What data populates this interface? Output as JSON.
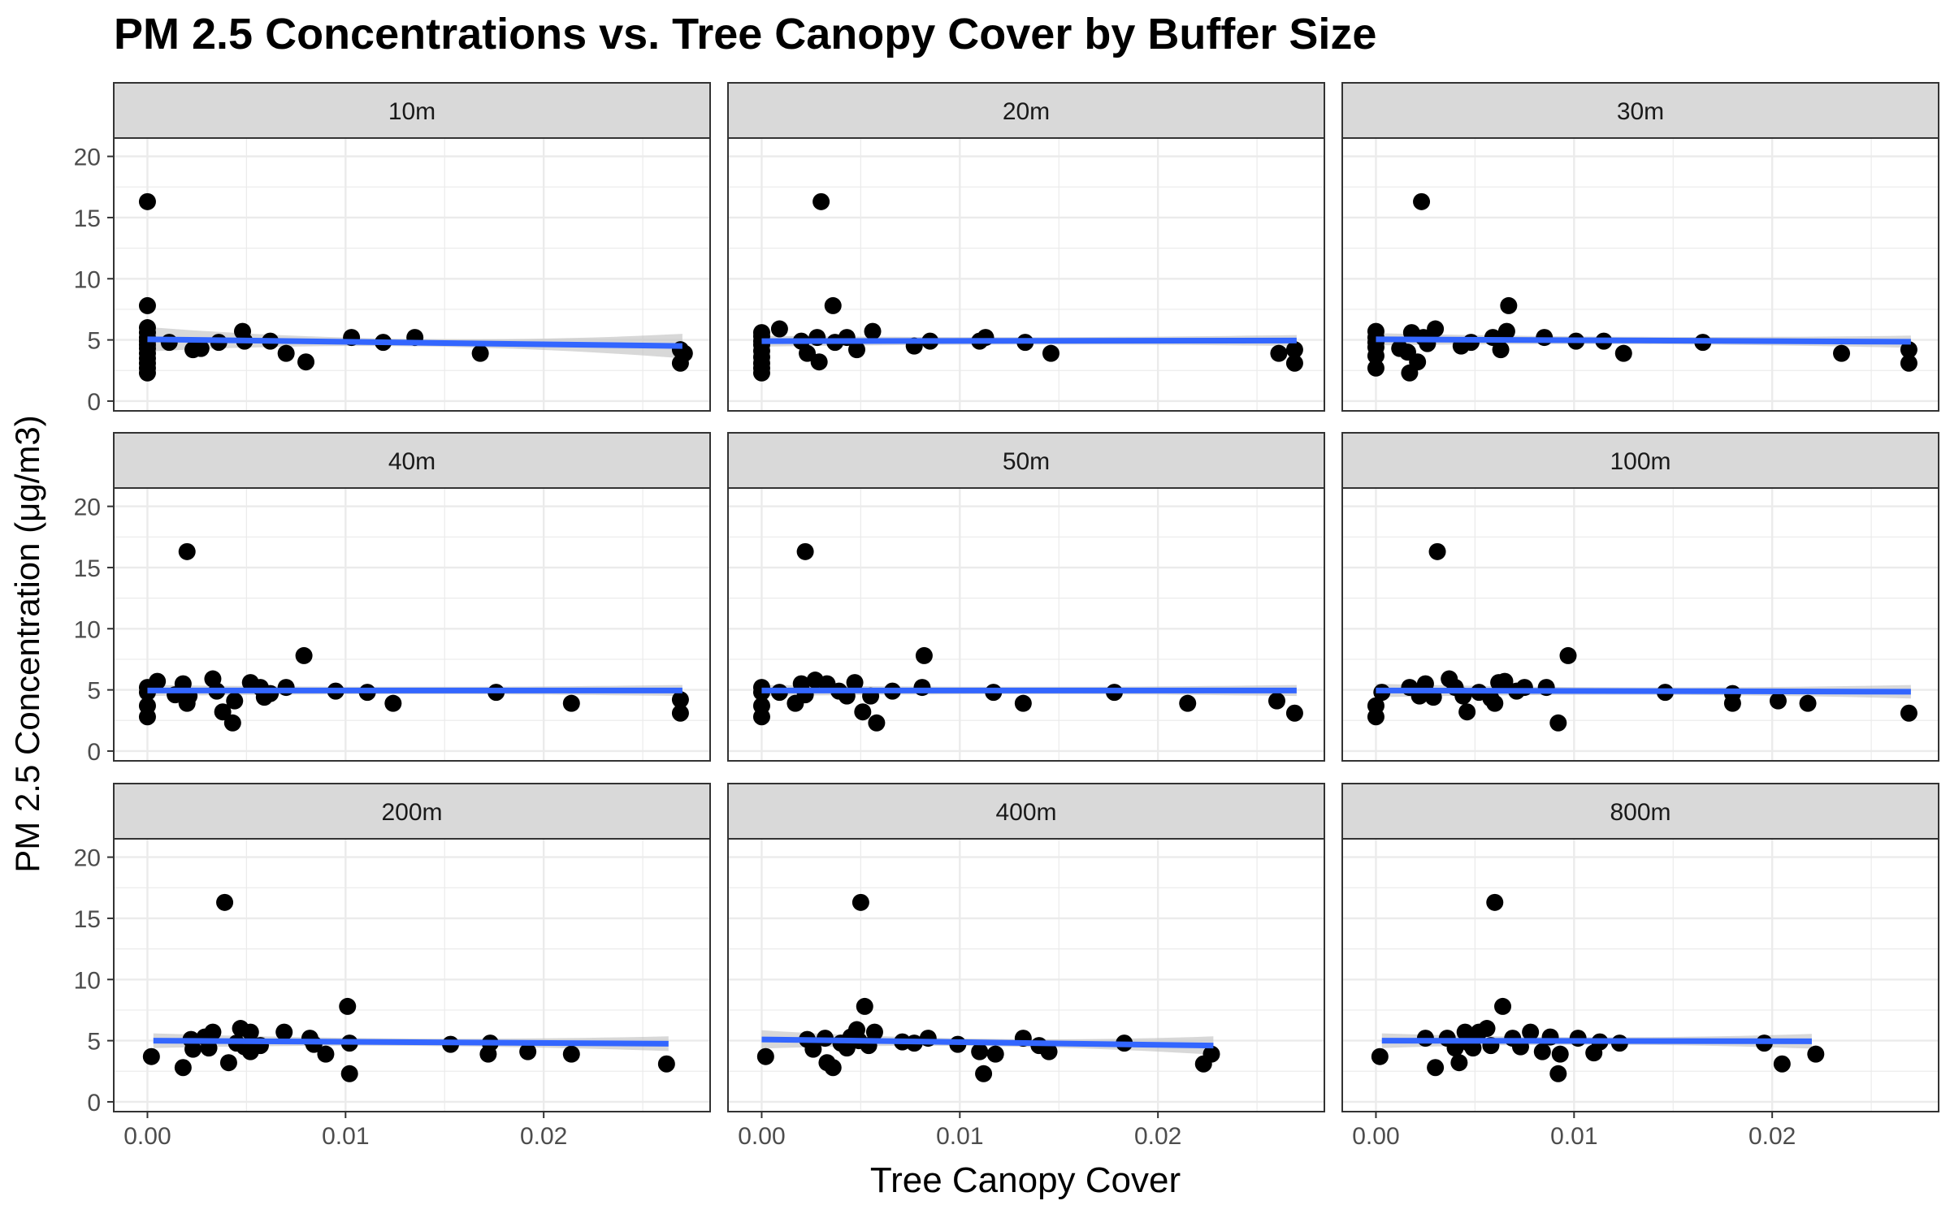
{
  "chart_data": {
    "type": "scatter",
    "title": "PM 2.5 Concentrations vs. Tree Canopy Cover by Buffer Size",
    "xlabel": "Tree Canopy Cover",
    "ylabel": "PM 2.5 Concentration (μg/m3)",
    "xlim": [
      -0.0017,
      0.0284
    ],
    "ylim": [
      -0.8,
      21.5
    ],
    "x_ticks": [
      0.0,
      0.01,
      0.02
    ],
    "x_tick_labels": [
      "0.00",
      "0.01",
      "0.02"
    ],
    "y_ticks": [
      0,
      5,
      10,
      15,
      20
    ],
    "y_tick_labels": [
      "0",
      "5",
      "10",
      "15",
      "20"
    ],
    "grid": true,
    "legend": "none",
    "colors": {
      "points": "#000000",
      "fit_line": "#3366FF",
      "confidence_band": "#BEBEBE",
      "strip_fill": "#D9D9D9",
      "grid": "#EBEBEB"
    },
    "panels": [
      {
        "label": "10m",
        "fit": {
          "x": [
            0.0,
            0.027
          ],
          "y": [
            5.05,
            4.5
          ],
          "band": [
            0.3,
            1.0
          ]
        },
        "points": [
          [
            0.0,
            16.3
          ],
          [
            0.0,
            7.8
          ],
          [
            0.0,
            6.0
          ],
          [
            0.0,
            5.6
          ],
          [
            0.0,
            5.2
          ],
          [
            0.0,
            4.9
          ],
          [
            0.0,
            4.6
          ],
          [
            0.0,
            4.3
          ],
          [
            0.0,
            3.9
          ],
          [
            0.0,
            3.5
          ],
          [
            0.0,
            3.1
          ],
          [
            0.0,
            2.7
          ],
          [
            0.0,
            2.3
          ],
          [
            0.0011,
            4.8
          ],
          [
            0.0023,
            4.2
          ],
          [
            0.0027,
            4.3
          ],
          [
            0.0036,
            4.8
          ],
          [
            0.0048,
            5.7
          ],
          [
            0.0049,
            4.9
          ],
          [
            0.0062,
            4.9
          ],
          [
            0.007,
            3.9
          ],
          [
            0.008,
            3.2
          ],
          [
            0.0103,
            5.2
          ],
          [
            0.0119,
            4.8
          ],
          [
            0.0135,
            5.2
          ],
          [
            0.0168,
            3.9
          ],
          [
            0.0269,
            4.2
          ],
          [
            0.0269,
            3.1
          ],
          [
            0.0271,
            3.9
          ]
        ]
      },
      {
        "label": "20m",
        "fit": {
          "x": [
            0.0,
            0.027
          ],
          "y": [
            4.9,
            4.95
          ],
          "band": [
            0.3,
            0.45
          ]
        },
        "points": [
          [
            0.0,
            5.6
          ],
          [
            0.0,
            5.3
          ],
          [
            0.0,
            4.9
          ],
          [
            0.0,
            4.6
          ],
          [
            0.0,
            4.1
          ],
          [
            0.0,
            3.6
          ],
          [
            0.0,
            3.1
          ],
          [
            0.0,
            2.7
          ],
          [
            0.0,
            2.3
          ],
          [
            0.0009,
            5.9
          ],
          [
            0.002,
            4.9
          ],
          [
            0.0023,
            3.9
          ],
          [
            0.0029,
            3.2
          ],
          [
            0.003,
            16.3
          ],
          [
            0.0028,
            5.2
          ],
          [
            0.0036,
            7.8
          ],
          [
            0.0037,
            4.8
          ],
          [
            0.0043,
            5.2
          ],
          [
            0.0048,
            4.2
          ],
          [
            0.0056,
            5.7
          ],
          [
            0.0077,
            4.5
          ],
          [
            0.0085,
            4.9
          ],
          [
            0.011,
            4.9
          ],
          [
            0.0113,
            5.2
          ],
          [
            0.0133,
            4.8
          ],
          [
            0.0146,
            3.9
          ],
          [
            0.0261,
            3.9
          ],
          [
            0.0269,
            4.2
          ],
          [
            0.0269,
            3.1
          ]
        ]
      },
      {
        "label": "30m",
        "fit": {
          "x": [
            0.0,
            0.027
          ],
          "y": [
            5.05,
            4.85
          ],
          "band": [
            0.3,
            0.5
          ]
        },
        "points": [
          [
            0.0,
            5.7
          ],
          [
            0.0,
            5.2
          ],
          [
            0.0,
            4.8
          ],
          [
            0.0,
            4.4
          ],
          [
            0.0,
            3.7
          ],
          [
            0.0,
            2.7
          ],
          [
            0.0012,
            4.3
          ],
          [
            0.0016,
            4.0
          ],
          [
            0.0017,
            2.3
          ],
          [
            0.0018,
            5.6
          ],
          [
            0.0021,
            3.2
          ],
          [
            0.0023,
            16.3
          ],
          [
            0.0024,
            5.2
          ],
          [
            0.0026,
            4.7
          ],
          [
            0.003,
            5.9
          ],
          [
            0.0043,
            4.5
          ],
          [
            0.0048,
            4.8
          ],
          [
            0.0059,
            5.2
          ],
          [
            0.0063,
            4.2
          ],
          [
            0.0066,
            5.7
          ],
          [
            0.0067,
            7.8
          ],
          [
            0.0085,
            5.2
          ],
          [
            0.0101,
            4.9
          ],
          [
            0.0115,
            4.9
          ],
          [
            0.0125,
            3.9
          ],
          [
            0.0165,
            4.8
          ],
          [
            0.0235,
            3.9
          ],
          [
            0.0269,
            4.2
          ],
          [
            0.0269,
            3.1
          ]
        ]
      },
      {
        "label": "40m",
        "fit": {
          "x": [
            0.0,
            0.027
          ],
          "y": [
            4.95,
            4.95
          ],
          "band": [
            0.3,
            0.45
          ]
        },
        "points": [
          [
            0.0,
            5.2
          ],
          [
            0.0,
            4.8
          ],
          [
            0.0,
            3.7
          ],
          [
            0.0,
            2.8
          ],
          [
            0.0005,
            5.7
          ],
          [
            0.0014,
            4.6
          ],
          [
            0.0018,
            5.5
          ],
          [
            0.002,
            3.9
          ],
          [
            0.002,
            16.3
          ],
          [
            0.0021,
            4.5
          ],
          [
            0.0033,
            5.9
          ],
          [
            0.0035,
            4.9
          ],
          [
            0.0038,
            3.2
          ],
          [
            0.0043,
            2.3
          ],
          [
            0.0044,
            4.1
          ],
          [
            0.0052,
            5.6
          ],
          [
            0.0057,
            5.2
          ],
          [
            0.0059,
            4.4
          ],
          [
            0.0062,
            4.7
          ],
          [
            0.007,
            5.2
          ],
          [
            0.0079,
            7.8
          ],
          [
            0.0095,
            4.9
          ],
          [
            0.0111,
            4.8
          ],
          [
            0.0124,
            3.9
          ],
          [
            0.0176,
            4.8
          ],
          [
            0.0214,
            3.9
          ],
          [
            0.0269,
            4.2
          ],
          [
            0.0269,
            3.1
          ]
        ]
      },
      {
        "label": "50m",
        "fit": {
          "x": [
            0.0,
            0.027
          ],
          "y": [
            4.95,
            4.95
          ],
          "band": [
            0.3,
            0.45
          ]
        },
        "points": [
          [
            0.0,
            5.2
          ],
          [
            0.0,
            4.8
          ],
          [
            0.0,
            3.7
          ],
          [
            0.0,
            2.8
          ],
          [
            0.0009,
            4.8
          ],
          [
            0.0017,
            3.9
          ],
          [
            0.002,
            5.5
          ],
          [
            0.0022,
            16.3
          ],
          [
            0.0022,
            4.6
          ],
          [
            0.0027,
            5.8
          ],
          [
            0.0033,
            5.5
          ],
          [
            0.0039,
            4.9
          ],
          [
            0.0043,
            4.5
          ],
          [
            0.0047,
            5.6
          ],
          [
            0.0051,
            3.2
          ],
          [
            0.0055,
            4.5
          ],
          [
            0.0058,
            2.3
          ],
          [
            0.0066,
            4.9
          ],
          [
            0.0081,
            5.2
          ],
          [
            0.0082,
            7.8
          ],
          [
            0.0117,
            4.8
          ],
          [
            0.0132,
            3.9
          ],
          [
            0.0178,
            4.8
          ],
          [
            0.0215,
            3.9
          ],
          [
            0.026,
            4.1
          ],
          [
            0.0269,
            3.1
          ]
        ]
      },
      {
        "label": "100m",
        "fit": {
          "x": [
            0.0,
            0.027
          ],
          "y": [
            4.95,
            4.85
          ],
          "band": [
            0.3,
            0.55
          ]
        },
        "points": [
          [
            0.0,
            3.7
          ],
          [
            0.0,
            2.8
          ],
          [
            0.0003,
            4.8
          ],
          [
            0.0017,
            5.2
          ],
          [
            0.0022,
            4.5
          ],
          [
            0.0025,
            5.5
          ],
          [
            0.0029,
            4.4
          ],
          [
            0.0031,
            16.3
          ],
          [
            0.0037,
            5.9
          ],
          [
            0.004,
            5.2
          ],
          [
            0.0044,
            4.5
          ],
          [
            0.0046,
            3.2
          ],
          [
            0.0052,
            4.8
          ],
          [
            0.0058,
            4.3
          ],
          [
            0.006,
            3.9
          ],
          [
            0.0062,
            5.6
          ],
          [
            0.0065,
            5.7
          ],
          [
            0.0071,
            4.9
          ],
          [
            0.0075,
            5.2
          ],
          [
            0.0086,
            5.2
          ],
          [
            0.0092,
            2.3
          ],
          [
            0.0097,
            7.8
          ],
          [
            0.0146,
            4.8
          ],
          [
            0.018,
            4.7
          ],
          [
            0.018,
            3.9
          ],
          [
            0.0203,
            4.1
          ],
          [
            0.0218,
            3.9
          ],
          [
            0.0269,
            3.1
          ]
        ]
      },
      {
        "label": "200m",
        "fit": {
          "x": [
            0.0003,
            0.0263
          ],
          "y": [
            5.0,
            4.75
          ],
          "band": [
            0.3,
            0.6
          ]
        },
        "points": [
          [
            0.0002,
            3.7
          ],
          [
            0.0018,
            2.8
          ],
          [
            0.0022,
            5.1
          ],
          [
            0.0023,
            4.3
          ],
          [
            0.0029,
            5.3
          ],
          [
            0.0031,
            4.4
          ],
          [
            0.0033,
            5.7
          ],
          [
            0.0039,
            16.3
          ],
          [
            0.0041,
            3.2
          ],
          [
            0.0045,
            4.8
          ],
          [
            0.0047,
            6.0
          ],
          [
            0.0049,
            4.5
          ],
          [
            0.0052,
            5.7
          ],
          [
            0.0052,
            4.1
          ],
          [
            0.0057,
            4.6
          ],
          [
            0.0069,
            5.7
          ],
          [
            0.0082,
            5.2
          ],
          [
            0.0084,
            4.7
          ],
          [
            0.009,
            3.9
          ],
          [
            0.0101,
            7.8
          ],
          [
            0.0102,
            4.8
          ],
          [
            0.0102,
            2.3
          ],
          [
            0.0153,
            4.7
          ],
          [
            0.0173,
            4.8
          ],
          [
            0.0172,
            3.9
          ],
          [
            0.0192,
            4.1
          ],
          [
            0.0214,
            3.9
          ],
          [
            0.0262,
            3.1
          ]
        ]
      },
      {
        "label": "400m",
        "fit": {
          "x": [
            0.0,
            0.0228
          ],
          "y": [
            5.1,
            4.6
          ],
          "band": [
            0.3,
            0.75
          ]
        },
        "points": [
          [
            0.0002,
            3.7
          ],
          [
            0.0023,
            5.1
          ],
          [
            0.0026,
            4.3
          ],
          [
            0.0032,
            5.2
          ],
          [
            0.0033,
            3.2
          ],
          [
            0.0036,
            2.8
          ],
          [
            0.004,
            4.8
          ],
          [
            0.0043,
            4.4
          ],
          [
            0.0045,
            5.3
          ],
          [
            0.005,
            16.3
          ],
          [
            0.0048,
            5.9
          ],
          [
            0.0049,
            5.0
          ],
          [
            0.0052,
            7.8
          ],
          [
            0.0054,
            4.6
          ],
          [
            0.0057,
            5.7
          ],
          [
            0.0071,
            4.9
          ],
          [
            0.0077,
            4.8
          ],
          [
            0.0084,
            5.2
          ],
          [
            0.0099,
            4.7
          ],
          [
            0.0112,
            2.3
          ],
          [
            0.011,
            4.1
          ],
          [
            0.0118,
            3.9
          ],
          [
            0.0132,
            5.2
          ],
          [
            0.014,
            4.6
          ],
          [
            0.0145,
            4.1
          ],
          [
            0.0183,
            4.8
          ],
          [
            0.0223,
            3.1
          ],
          [
            0.0227,
            3.9
          ]
        ]
      },
      {
        "label": "800m",
        "fit": {
          "x": [
            0.0003,
            0.022
          ],
          "y": [
            5.0,
            4.95
          ],
          "band": [
            0.3,
            0.6
          ]
        },
        "points": [
          [
            0.0002,
            3.7
          ],
          [
            0.0025,
            5.2
          ],
          [
            0.003,
            2.8
          ],
          [
            0.0036,
            5.2
          ],
          [
            0.004,
            4.4
          ],
          [
            0.0042,
            3.2
          ],
          [
            0.0045,
            5.7
          ],
          [
            0.0047,
            4.8
          ],
          [
            0.0049,
            4.4
          ],
          [
            0.0052,
            5.7
          ],
          [
            0.0056,
            6.0
          ],
          [
            0.0058,
            4.6
          ],
          [
            0.006,
            16.3
          ],
          [
            0.0064,
            7.8
          ],
          [
            0.0069,
            5.2
          ],
          [
            0.0073,
            4.5
          ],
          [
            0.0078,
            5.7
          ],
          [
            0.0084,
            4.1
          ],
          [
            0.0088,
            5.3
          ],
          [
            0.0092,
            2.3
          ],
          [
            0.0093,
            3.9
          ],
          [
            0.0102,
            5.2
          ],
          [
            0.011,
            4.0
          ],
          [
            0.0113,
            4.9
          ],
          [
            0.0123,
            4.8
          ],
          [
            0.0196,
            4.8
          ],
          [
            0.0205,
            3.1
          ],
          [
            0.0222,
            3.9
          ]
        ]
      }
    ]
  }
}
